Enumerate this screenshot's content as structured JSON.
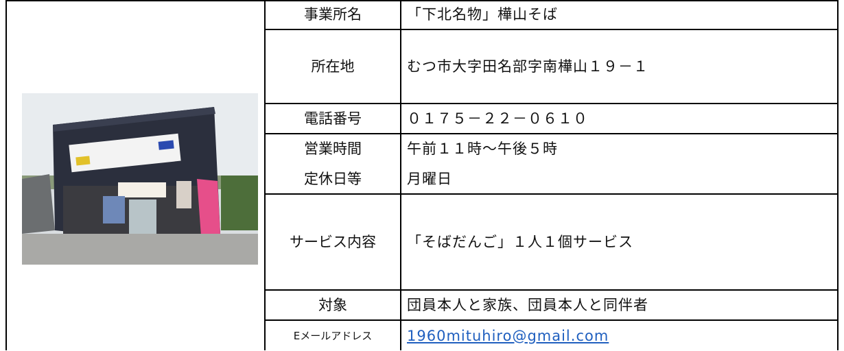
{
  "table": {
    "rows": [
      {
        "label": [
          "事業所名"
        ],
        "value": [
          "「下北名物」樺山そば"
        ]
      },
      {
        "label": [
          "所在地"
        ],
        "value": [
          "むつ市大字田名部字南樺山１９－１"
        ]
      },
      {
        "label": [
          "電話番号"
        ],
        "value": [
          "０１７５－２２－０６１０"
        ]
      },
      {
        "label": [
          "営業時間",
          "定休日等"
        ],
        "value": [
          "午前１１時～午後５時",
          "月曜日"
        ]
      },
      {
        "label": [
          "サービス内容"
        ],
        "value": [
          "「そばだんご」１人１個サービス"
        ]
      },
      {
        "label": [
          "対象"
        ],
        "value": [
          "団員本人と家族、団員本人と同伴者"
        ]
      },
      {
        "label": [
          "Eメールアドレス"
        ],
        "value": [
          "1960mituhiro@gmail.com"
        ]
      }
    ]
  }
}
